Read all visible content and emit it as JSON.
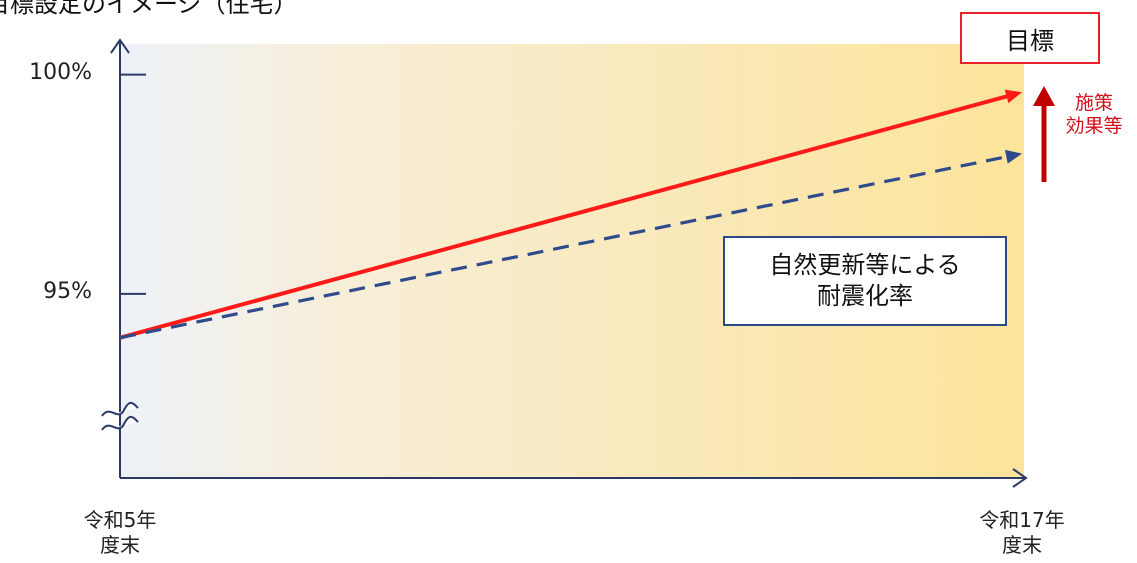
{
  "title": "目標設定のイメージ（住宅）",
  "target_label": "目標",
  "effect_label_line1": "施策",
  "effect_label_line2": "効果等",
  "note_line1": "自然更新等による",
  "note_line2": "耐震化率",
  "colors": {
    "target_line": "#ff1a1a",
    "natural_line": "#2f4b8c",
    "effect_arrow": "#c00000",
    "note_border": "#2c4a86",
    "target_border": "#e8202a"
  },
  "chart_data": {
    "type": "line",
    "categories": [
      "令和5年度末",
      "令和17年度末"
    ],
    "x_tick_labels": [
      [
        "令和5年",
        "度末"
      ],
      [
        "令和17年",
        "度末"
      ]
    ],
    "y_tick_labels": [
      "100%",
      "95%"
    ],
    "y_ticks": [
      100,
      95
    ],
    "ylim": [
      90.8,
      100.7
    ],
    "axis_break": true,
    "series": [
      {
        "style": "solid",
        "values": [
          94.0,
          99.6
        ]
      },
      {
        "style": "dashed",
        "values": [
          94.0,
          98.2
        ]
      }
    ]
  }
}
